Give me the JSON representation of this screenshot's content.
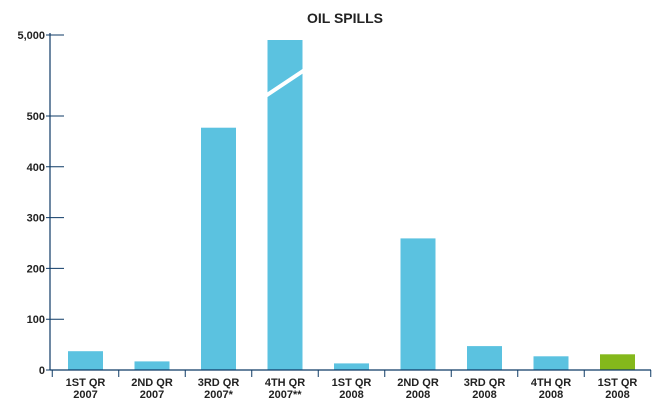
{
  "chart_data": {
    "type": "bar",
    "title": "OIL SPILLS",
    "xlabel": "",
    "ylabel": "",
    "categories": [
      [
        "1ST QR",
        "2007"
      ],
      [
        "2ND QR",
        "2007"
      ],
      [
        "3RD QR",
        "2007*"
      ],
      [
        "4TH QR",
        "2007**"
      ],
      [
        "1ST QR",
        "2008"
      ],
      [
        "2ND QR",
        "2008"
      ],
      [
        "3RD QR",
        "2008"
      ],
      [
        "4TH QR",
        "2008"
      ],
      [
        "1ST QR",
        "2008"
      ]
    ],
    "values": [
      37,
      17,
      477,
      5000,
      13,
      259,
      47,
      27,
      31
    ],
    "broken_bar_index": 3,
    "yticks": [
      0,
      100,
      200,
      300,
      400,
      500,
      5000
    ],
    "ytick_labels": [
      "0",
      "100",
      "200",
      "300",
      "400",
      "500",
      "5,000"
    ],
    "ylim": [
      0,
      5000
    ],
    "axis_break": true,
    "grid": false,
    "bar_color": "#5bc2e0",
    "highlight_color": "#84b81b",
    "highlight_index": 8,
    "axis_color": "#0e3a66"
  }
}
